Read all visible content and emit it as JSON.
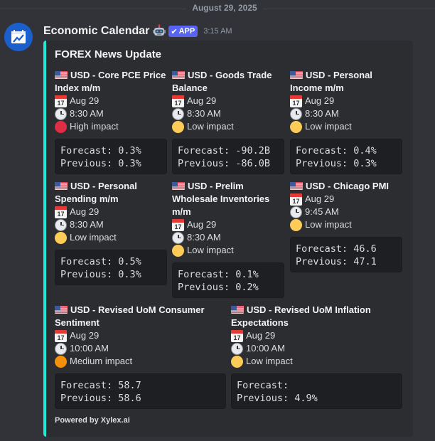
{
  "date_divider": "August 29, 2025",
  "message": {
    "username": "Economic Calendar",
    "badge": "APP",
    "timestamp": "3:15 AM"
  },
  "embed": {
    "title": "FOREX News Update",
    "accent_color": "#1de9d6",
    "footer": "Powered by Xylex.ai",
    "events": [
      {
        "flag": "us-flag",
        "name_lines": [
          "USD - Core PCE Price",
          "Index m/m"
        ],
        "date": "Aug 29",
        "time": "8:30 AM",
        "impact": "High impact",
        "impact_color": "#dd2e44",
        "forecast": "Forecast: 0.3%",
        "previous": "Previous: 0.3%"
      },
      {
        "flag": "us-flag",
        "name_lines": [
          "USD - Goods Trade",
          "Balance"
        ],
        "date": "Aug 29",
        "time": "8:30 AM",
        "impact": "Low impact",
        "impact_color": "#fdcb58",
        "forecast": "Forecast: -90.2B",
        "previous": "Previous: -86.0B"
      },
      {
        "flag": "us-flag",
        "name_lines": [
          "USD - Personal",
          "Income m/m"
        ],
        "date": "Aug 29",
        "time": "8:30 AM",
        "impact": "Low impact",
        "impact_color": "#fdcb58",
        "forecast": "Forecast: 0.4%",
        "previous": "Previous: 0.3%"
      },
      {
        "flag": "us-flag",
        "name_lines": [
          "USD - Personal",
          "Spending m/m"
        ],
        "date": "Aug 29",
        "time": "8:30 AM",
        "impact": "Low impact",
        "impact_color": "#fdcb58",
        "forecast": "Forecast: 0.5%",
        "previous": "Previous: 0.3%"
      },
      {
        "flag": "us-flag",
        "name_lines": [
          "USD - Prelim",
          "Wholesale Inventories",
          "m/m"
        ],
        "date": "Aug 29",
        "time": "8:30 AM",
        "impact": "Low impact",
        "impact_color": "#fdcb58",
        "forecast": "Forecast: 0.1%",
        "previous": "Previous: 0.2%"
      },
      {
        "flag": "us-flag",
        "name_lines": [
          "USD - Chicago PMI"
        ],
        "date": "Aug 29",
        "time": "9:45 AM",
        "impact": "Low impact",
        "impact_color": "#fdcb58",
        "forecast": "Forecast: 46.6",
        "previous": "Previous: 47.1"
      },
      {
        "flag": "us-flag",
        "name_lines": [
          "USD - Revised UoM Consumer",
          "Sentiment"
        ],
        "date": "Aug 29",
        "time": "10:00 AM",
        "impact": "Medium impact",
        "impact_color": "#f4900c",
        "forecast": "Forecast: 58.7",
        "previous": "Previous: 58.6"
      },
      {
        "flag": "us-flag",
        "name_lines": [
          "USD - Revised UoM Inflation",
          "Expectations"
        ],
        "date": "Aug 29",
        "time": "10:00 AM",
        "impact": "Low impact",
        "impact_color": "#fdcb58",
        "forecast": "Forecast:",
        "previous": "Previous: 4.9%"
      }
    ]
  },
  "calendar_icon_day": "17"
}
